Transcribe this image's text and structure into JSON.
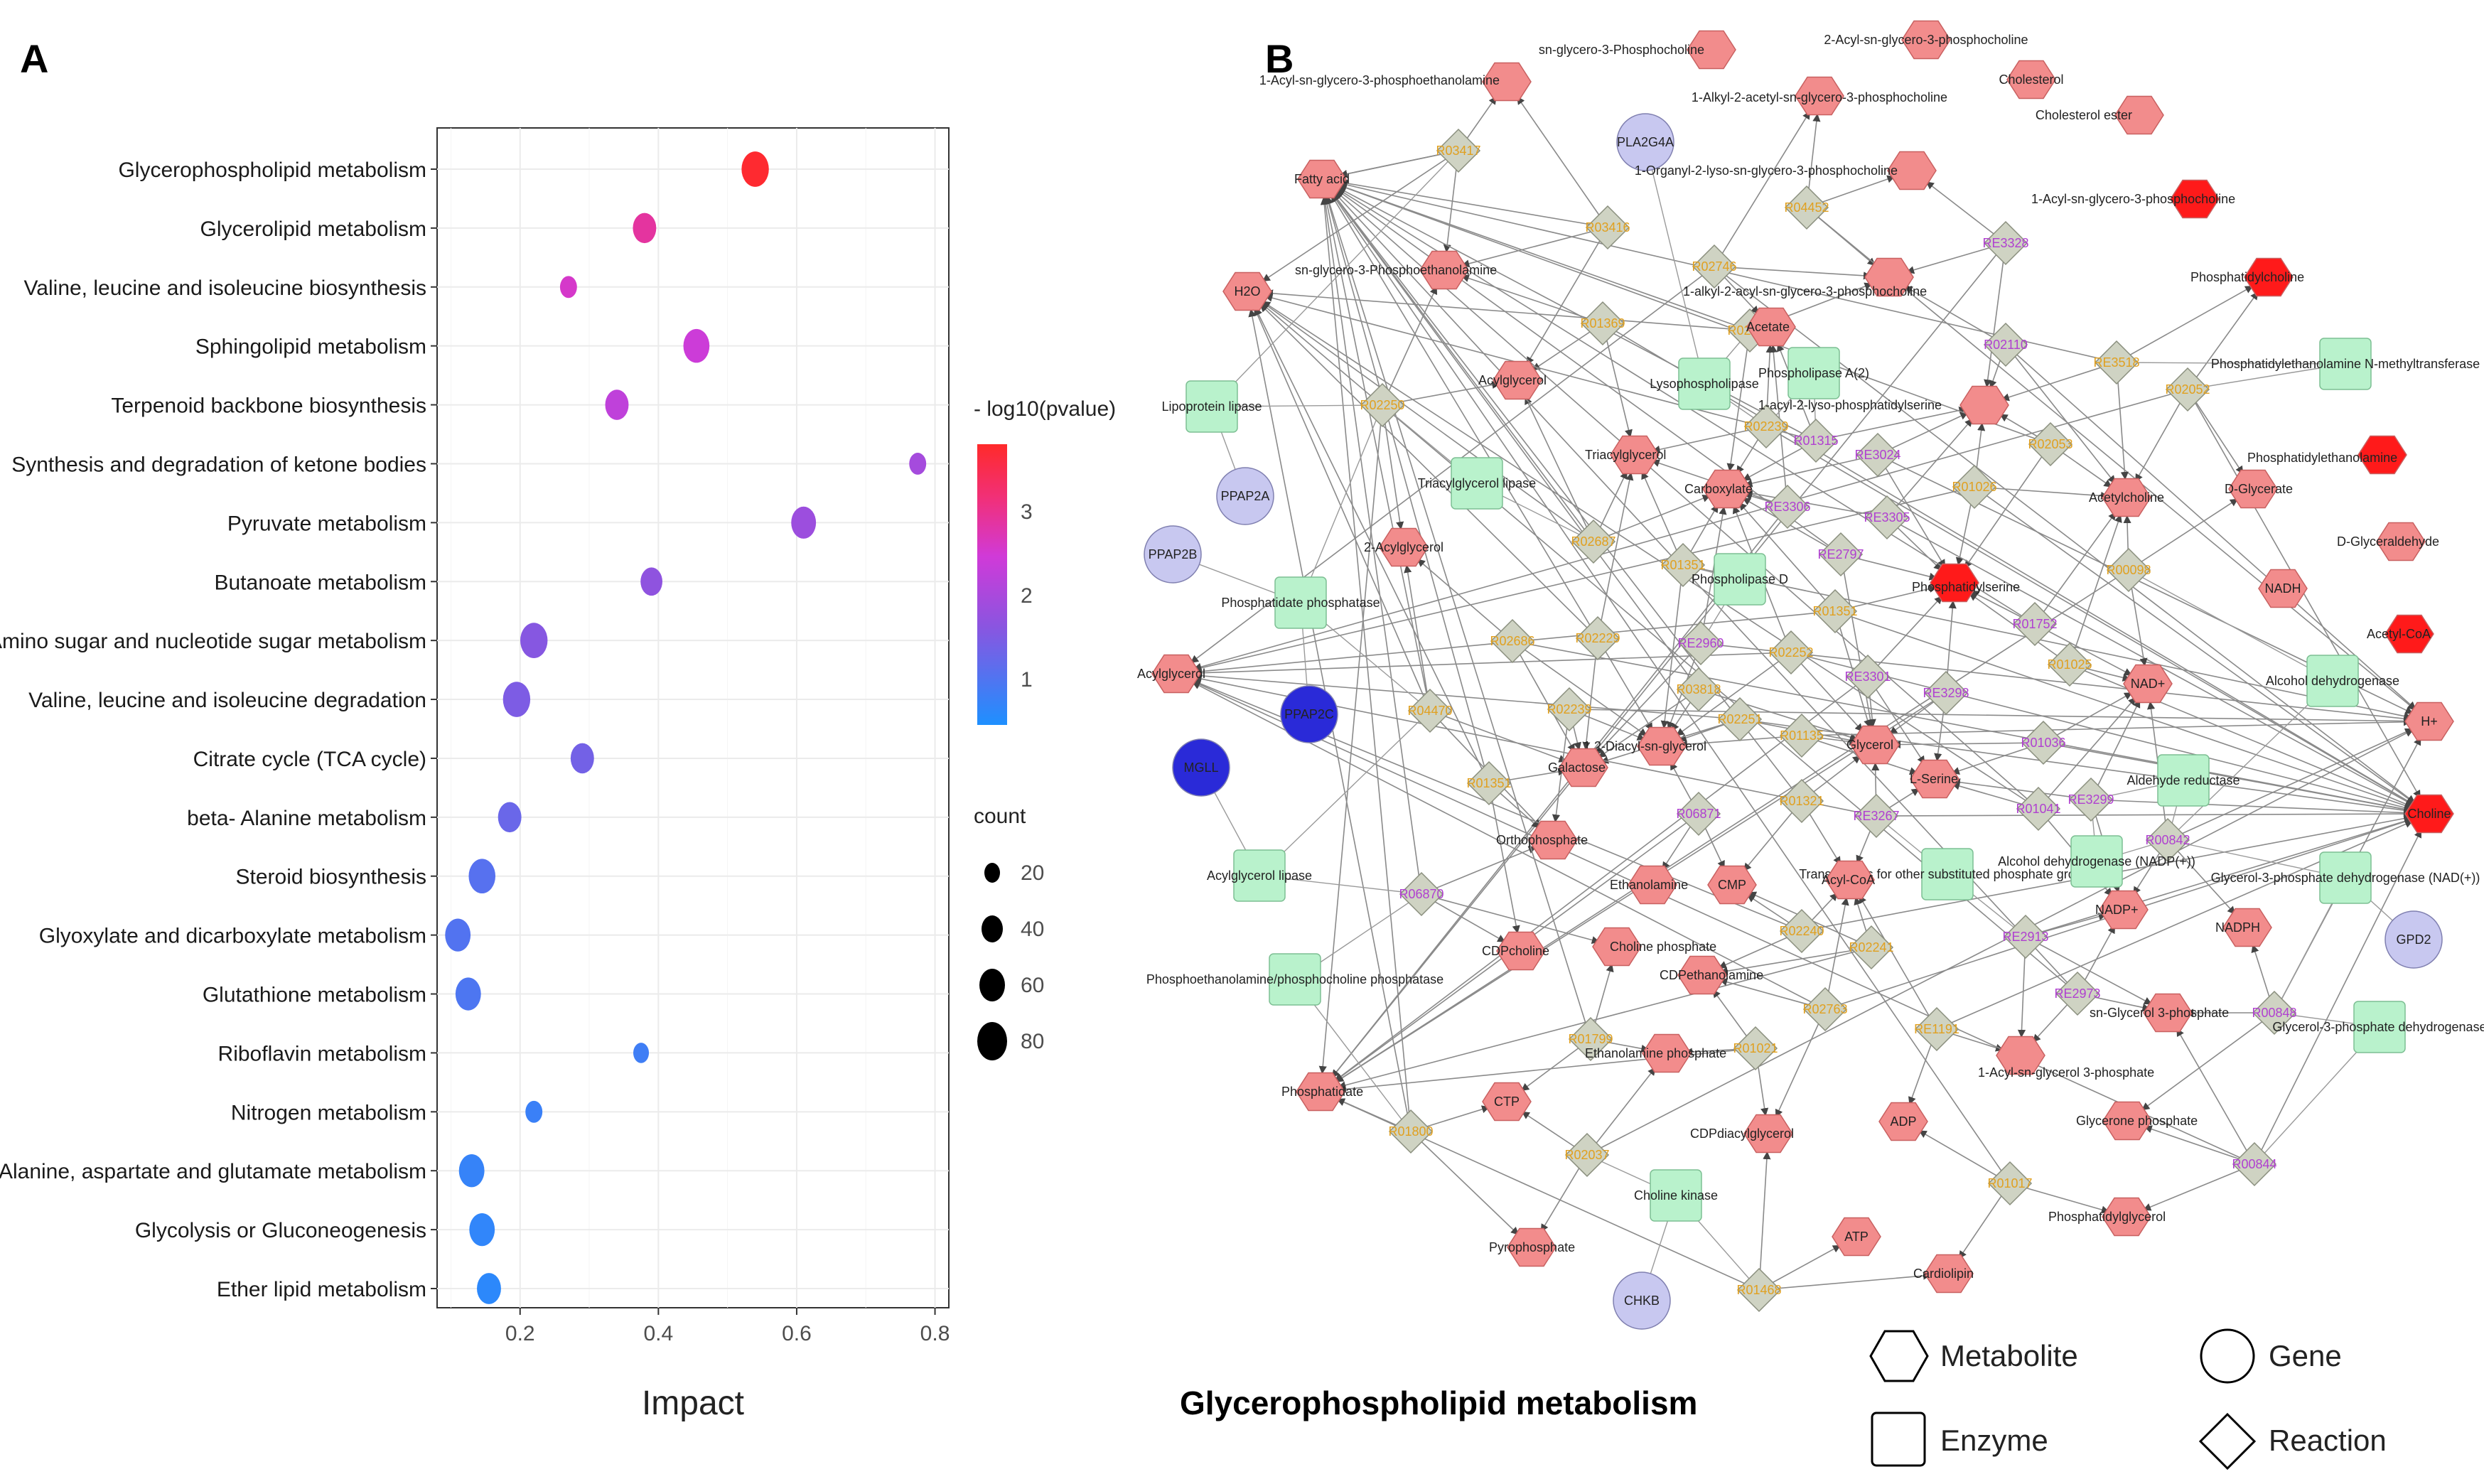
{
  "panel_a": {
    "letter": "A",
    "xlabel": "Impact",
    "x_ticks": [
      "0.2",
      "0.4",
      "0.6",
      "0.8"
    ],
    "legend_color_title": "- log10(pvalue)",
    "legend_color_ticks": [
      "1",
      "2",
      "3"
    ],
    "legend_size_title": "count",
    "legend_size_ticks": [
      "20",
      "40",
      "60",
      "80"
    ]
  },
  "chart_data": {
    "type": "scatter",
    "xlabel": "Impact",
    "xlim": [
      0.08,
      0.82
    ],
    "color_label": "-log10(pvalue)",
    "color_range": [
      0.55,
      3.8
    ],
    "colors": {
      "low": "#1e90ff",
      "mid": "#d03ad8",
      "high": "#ff2a2a"
    },
    "size_label": "count",
    "points": [
      {
        "pathway": "Glycerophospholipid metabolism",
        "impact": 0.54,
        "neglog10p": 3.75,
        "count": 85
      },
      {
        "pathway": "Glycerolipid metabolism",
        "impact": 0.38,
        "neglog10p": 2.9,
        "count": 55
      },
      {
        "pathway": "Valine, leucine and isoleucine biosynthesis",
        "impact": 0.27,
        "neglog10p": 2.6,
        "count": 20
      },
      {
        "pathway": "Sphingolipid metabolism",
        "impact": 0.455,
        "neglog10p": 2.45,
        "count": 75
      },
      {
        "pathway": "Terpenoid backbone biosynthesis",
        "impact": 0.34,
        "neglog10p": 2.3,
        "count": 55
      },
      {
        "pathway": "Synthesis and degradation of ketone bodies",
        "impact": 0.775,
        "neglog10p": 2.0,
        "count": 20
      },
      {
        "pathway": "Pyruvate metabolism",
        "impact": 0.61,
        "neglog10p": 1.9,
        "count": 65
      },
      {
        "pathway": "Butanoate metabolism",
        "impact": 0.39,
        "neglog10p": 1.75,
        "count": 45
      },
      {
        "pathway": "Amino sugar and nucleotide sugar metabolism",
        "impact": 0.22,
        "neglog10p": 1.65,
        "count": 85
      },
      {
        "pathway": "Valine, leucine and isoleucine degradation",
        "impact": 0.195,
        "neglog10p": 1.55,
        "count": 85
      },
      {
        "pathway": "Citrate cycle (TCA cycle)",
        "impact": 0.29,
        "neglog10p": 1.45,
        "count": 55
      },
      {
        "pathway": "beta- Alanine metabolism",
        "impact": 0.185,
        "neglog10p": 1.35,
        "count": 55
      },
      {
        "pathway": "Steroid biosynthesis",
        "impact": 0.145,
        "neglog10p": 1.15,
        "count": 80
      },
      {
        "pathway": "Glyoxylate and dicarboxylate metabolism",
        "impact": 0.11,
        "neglog10p": 1.1,
        "count": 70
      },
      {
        "pathway": "Glutathione metabolism",
        "impact": 0.125,
        "neglog10p": 1.05,
        "count": 70
      },
      {
        "pathway": "Riboflavin metabolism",
        "impact": 0.375,
        "neglog10p": 0.9,
        "count": 15
      },
      {
        "pathway": "Nitrogen metabolism",
        "impact": 0.22,
        "neglog10p": 0.85,
        "count": 20
      },
      {
        "pathway": "Alanine, aspartate and glutamate metabolism",
        "impact": 0.13,
        "neglog10p": 0.8,
        "count": 70
      },
      {
        "pathway": "Glycolysis or Gluconeogenesis",
        "impact": 0.145,
        "neglog10p": 0.75,
        "count": 70
      },
      {
        "pathway": "Ether lipid metabolism",
        "impact": 0.155,
        "neglog10p": 0.7,
        "count": 60
      }
    ]
  },
  "panel_b": {
    "letter": "B",
    "title": "Glycerophospholipid metabolism",
    "legend": {
      "metabolite": "Metabolite",
      "gene": "Gene",
      "enzyme": "Enzyme",
      "reaction": "Reaction"
    },
    "metabolites": [
      {
        "id": "m1",
        "label": "sn-glycero-3-Phosphocholine",
        "color": "#f28c8c"
      },
      {
        "id": "m2",
        "label": "2-Acyl-sn-glycero-3-phosphocholine",
        "color": "#f28c8c"
      },
      {
        "id": "m3",
        "label": "1-Acyl-sn-glycero-3-phosphoethanolamine",
        "color": "#f28c8c"
      },
      {
        "id": "m4",
        "label": "1-Alkyl-2-acetyl-sn-glycero-3-phosphocholine",
        "color": "#f28c8c"
      },
      {
        "id": "m5",
        "label": "Cholesterol",
        "color": "#f28c8c"
      },
      {
        "id": "m6",
        "label": "Cholesterol ester",
        "color": "#f28c8c"
      },
      {
        "id": "m7",
        "label": "Fatty acid",
        "color": "#f28c8c"
      },
      {
        "id": "m8",
        "label": "1-Organyl-2-lyso-sn-glycero-3-phosphocholine",
        "color": "#f28c8c"
      },
      {
        "id": "m9",
        "label": "1-Acyl-sn-glycero-3-phosphocholine",
        "color": "#ff1a1a"
      },
      {
        "id": "m10",
        "label": "H2O",
        "color": "#f28c8c"
      },
      {
        "id": "m11",
        "label": "sn-glycero-3-Phosphoethanolamine",
        "color": "#f28c8c"
      },
      {
        "id": "m12",
        "label": "Phosphatidylcholine",
        "color": "#ff1a1a"
      },
      {
        "id": "m13",
        "label": "1-alkyl-2-acyl-sn-glycero-3-phosphocholine",
        "color": "#f28c8c"
      },
      {
        "id": "m14",
        "label": "Acetate",
        "color": "#f28c8c"
      },
      {
        "id": "m15",
        "label": "Acylglycerol",
        "color": "#f28c8c"
      },
      {
        "id": "m16",
        "label": "1-acyl-2-lyso-phosphatidylserine",
        "color": "#f28c8c"
      },
      {
        "id": "m17",
        "label": "Triacylglycerol",
        "color": "#f28c8c"
      },
      {
        "id": "m18",
        "label": "Carboxylate",
        "color": "#f28c8c"
      },
      {
        "id": "m19",
        "label": "Phosphatidylethanolamine",
        "color": "#ff1a1a"
      },
      {
        "id": "m20",
        "label": "Acetylcholine",
        "color": "#f28c8c"
      },
      {
        "id": "m21",
        "label": "D-Glycerate",
        "color": "#f28c8c"
      },
      {
        "id": "m22",
        "label": "2-Acylglycerol",
        "color": "#f28c8c"
      },
      {
        "id": "m23",
        "label": "D-Glyceraldehyde",
        "color": "#f28c8c"
      },
      {
        "id": "m24",
        "label": "Phosphatidylserine",
        "color": "#ff1a1a"
      },
      {
        "id": "m25",
        "label": "NADH",
        "color": "#f28c8c"
      },
      {
        "id": "m26",
        "label": "Acetyl-CoA",
        "color": "#ff1a1a"
      },
      {
        "id": "m27",
        "label": "Acylglycerol",
        "color": "#f28c8c"
      },
      {
        "id": "m28",
        "label": "NAD+",
        "color": "#f28c8c"
      },
      {
        "id": "m29",
        "label": "H+",
        "color": "#f28c8c"
      },
      {
        "id": "m30",
        "label": "1,2-Diacyl-sn-glycerol",
        "color": "#f28c8c"
      },
      {
        "id": "m31",
        "label": "Glycerol",
        "color": "#f28c8c"
      },
      {
        "id": "m32",
        "label": "Galactose",
        "color": "#f28c8c"
      },
      {
        "id": "m33",
        "label": "L-Serine",
        "color": "#f28c8c"
      },
      {
        "id": "m34",
        "label": "Choline",
        "color": "#ff1a1a"
      },
      {
        "id": "m35",
        "label": "Orthophosphate",
        "color": "#f28c8c"
      },
      {
        "id": "m36",
        "label": "Ethanolamine",
        "color": "#f28c8c"
      },
      {
        "id": "m37",
        "label": "CMP",
        "color": "#f28c8c"
      },
      {
        "id": "m38",
        "label": "Acyl-CoA",
        "color": "#f28c8c"
      },
      {
        "id": "m39",
        "label": "NADP+",
        "color": "#f28c8c"
      },
      {
        "id": "m40",
        "label": "NADPH",
        "color": "#f28c8c"
      },
      {
        "id": "m41",
        "label": "CDPcholine",
        "color": "#f28c8c"
      },
      {
        "id": "m42",
        "label": "Choline phosphate",
        "color": "#f28c8c"
      },
      {
        "id": "m43",
        "label": "CDPethanolamine",
        "color": "#f28c8c"
      },
      {
        "id": "m44",
        "label": "sn-Glycerol 3-phosphate",
        "color": "#f28c8c"
      },
      {
        "id": "m45",
        "label": "Ethanolamine phosphate",
        "color": "#f28c8c"
      },
      {
        "id": "m46",
        "label": "Phosphatidate",
        "color": "#f28c8c"
      },
      {
        "id": "m47",
        "label": "CTP",
        "color": "#f28c8c"
      },
      {
        "id": "m48",
        "label": "1-Acyl-sn-glycerol 3-phosphate",
        "color": "#f28c8c"
      },
      {
        "id": "m49",
        "label": "ADP",
        "color": "#f28c8c"
      },
      {
        "id": "m50",
        "label": "CDPdiacylglycerol",
        "color": "#f28c8c"
      },
      {
        "id": "m51",
        "label": "Glycerone phosphate",
        "color": "#f28c8c"
      },
      {
        "id": "m52",
        "label": "ATP",
        "color": "#f28c8c"
      },
      {
        "id": "m53",
        "label": "Phosphatidylglycerol",
        "color": "#f28c8c"
      },
      {
        "id": "m54",
        "label": "Pyrophosphate",
        "color": "#f28c8c"
      },
      {
        "id": "m55",
        "label": "Cardiolipin",
        "color": "#f28c8c"
      }
    ],
    "genes": [
      {
        "id": "g1",
        "label": "PLA2G4A",
        "color": "#c8c8f0"
      },
      {
        "id": "g2",
        "label": "PPAP2A",
        "color": "#c8c8f0"
      },
      {
        "id": "g3",
        "label": "PPAP2B",
        "color": "#c8c8f0"
      },
      {
        "id": "g4",
        "label": "PPAP2C",
        "color": "#2a2ad8"
      },
      {
        "id": "g5",
        "label": "MGLL",
        "color": "#2a2ad8"
      },
      {
        "id": "g6",
        "label": "GPD2",
        "color": "#c8c8f0"
      },
      {
        "id": "g7",
        "label": "CHKB",
        "color": "#c8c8f0"
      }
    ],
    "enzymes": [
      {
        "id": "e1",
        "label": "Lipoprotein lipase"
      },
      {
        "id": "e2",
        "label": "Lysophospholipase"
      },
      {
        "id": "e3",
        "label": "Phospholipase A(2)"
      },
      {
        "id": "e4",
        "label": "Phosphatidylethanolamine N-methyltransferase"
      },
      {
        "id": "e5",
        "label": "Triacylglycerol lipase"
      },
      {
        "id": "e6",
        "label": "Phosphatidate phosphatase"
      },
      {
        "id": "e7",
        "label": "Phospholipase D"
      },
      {
        "id": "e8",
        "label": "Alcohol dehydrogenase"
      },
      {
        "id": "e9",
        "label": "Aldehyde reductase"
      },
      {
        "id": "e10",
        "label": "Transferases for other substituted phosphate groups"
      },
      {
        "id": "e11",
        "label": "Alcohol dehydrogenase (NADP(+))"
      },
      {
        "id": "e12",
        "label": "Acylglycerol lipase"
      },
      {
        "id": "e13",
        "label": "Glycerol-3-phosphate dehydrogenase (NAD(+))"
      },
      {
        "id": "e14",
        "label": "Phosphoethanolamine/phosphocholine phosphatase"
      },
      {
        "id": "e15",
        "label": "Glycerol-3-phosphate dehydrogenase"
      },
      {
        "id": "e16",
        "label": "Choline kinase"
      }
    ],
    "reactions": [
      {
        "id": "r1",
        "label": "R03417",
        "color": "#e0a020"
      },
      {
        "id": "r2",
        "label": "R04452",
        "color": "#e0a020"
      },
      {
        "id": "r3",
        "label": "R03416",
        "color": "#e0a020"
      },
      {
        "id": "r4",
        "label": "R02746",
        "color": "#e0a020"
      },
      {
        "id": "r5",
        "label": "RE3328",
        "color": "#b040d0"
      },
      {
        "id": "r6",
        "label": "R01369",
        "color": "#e0a020"
      },
      {
        "id": "r7",
        "label": "R02747",
        "color": "#e0a020"
      },
      {
        "id": "r8",
        "label": "R02110",
        "color": "#b040d0"
      },
      {
        "id": "r9",
        "label": "RE3518",
        "color": "#e0a020"
      },
      {
        "id": "r10",
        "label": "R02052",
        "color": "#e0a020"
      },
      {
        "id": "r11",
        "label": "R02250",
        "color": "#e0a020"
      },
      {
        "id": "r12",
        "label": "R02239",
        "color": "#e0a020"
      },
      {
        "id": "r13",
        "label": "R01315",
        "color": "#b040d0"
      },
      {
        "id": "r14",
        "label": "RE3024",
        "color": "#b040d0"
      },
      {
        "id": "r15",
        "label": "R02053",
        "color": "#e0a020"
      },
      {
        "id": "r16",
        "label": "R01026",
        "color": "#e0a020"
      },
      {
        "id": "r17",
        "label": "RE3306",
        "color": "#b040d0"
      },
      {
        "id": "r18",
        "label": "RE3305",
        "color": "#b040d0"
      },
      {
        "id": "r19",
        "label": "R02687",
        "color": "#e0a020"
      },
      {
        "id": "r20",
        "label": "R01351",
        "color": "#e0a020"
      },
      {
        "id": "r21",
        "label": "RE2797",
        "color": "#b040d0"
      },
      {
        "id": "r22",
        "label": "R01351",
        "color": "#e0a020"
      },
      {
        "id": "r23",
        "label": "R00098",
        "color": "#e0a020"
      },
      {
        "id": "r24",
        "label": "R02686",
        "color": "#e0a020"
      },
      {
        "id": "r25",
        "label": "R02229",
        "color": "#e0a020"
      },
      {
        "id": "r26",
        "label": "RE2960",
        "color": "#b040d0"
      },
      {
        "id": "r27",
        "label": "R01752",
        "color": "#b040d0"
      },
      {
        "id": "r28",
        "label": "R02252",
        "color": "#e0a020"
      },
      {
        "id": "r29",
        "label": "RE3301",
        "color": "#b040d0"
      },
      {
        "id": "r30",
        "label": "R01025",
        "color": "#e0a020"
      },
      {
        "id": "r31",
        "label": "R04470",
        "color": "#e0a020"
      },
      {
        "id": "r32",
        "label": "R02239",
        "color": "#e0a020"
      },
      {
        "id": "r33",
        "label": "R03818",
        "color": "#e0a020"
      },
      {
        "id": "r34",
        "label": "R02251",
        "color": "#e0a020"
      },
      {
        "id": "r35",
        "label": "RE3298",
        "color": "#b040d0"
      },
      {
        "id": "r36",
        "label": "R01036",
        "color": "#b040d0"
      },
      {
        "id": "r37",
        "label": "R01351",
        "color": "#e0a020"
      },
      {
        "id": "r38",
        "label": "R01135",
        "color": "#e0a020"
      },
      {
        "id": "r39",
        "label": "R01321",
        "color": "#e0a020"
      },
      {
        "id": "r40",
        "label": "RE3267",
        "color": "#b040d0"
      },
      {
        "id": "r41",
        "label": "R06871",
        "color": "#b040d0"
      },
      {
        "id": "r42",
        "label": "RE3299",
        "color": "#b040d0"
      },
      {
        "id": "r43",
        "label": "R01041",
        "color": "#b040d0"
      },
      {
        "id": "r44",
        "label": "R00842",
        "color": "#b040d0"
      },
      {
        "id": "r45",
        "label": "R06870",
        "color": "#b040d0"
      },
      {
        "id": "r46",
        "label": "R02240",
        "color": "#e0a020"
      },
      {
        "id": "r47",
        "label": "R02241",
        "color": "#e0a020"
      },
      {
        "id": "r48",
        "label": "RE2913",
        "color": "#b040d0"
      },
      {
        "id": "r49",
        "label": "RE2973",
        "color": "#b040d0"
      },
      {
        "id": "r50",
        "label": "R00848",
        "color": "#b040d0"
      },
      {
        "id": "r51",
        "label": "R01799",
        "color": "#e0a020"
      },
      {
        "id": "r52",
        "label": "R02763",
        "color": "#e0a020"
      },
      {
        "id": "r53",
        "label": "R01021",
        "color": "#e0a020"
      },
      {
        "id": "r54",
        "label": "RE1191",
        "color": "#e0a020"
      },
      {
        "id": "r55",
        "label": "R01800",
        "color": "#e0a020"
      },
      {
        "id": "r56",
        "label": "R02037",
        "color": "#e0a020"
      },
      {
        "id": "r57",
        "label": "R01017",
        "color": "#e0a020"
      },
      {
        "id": "r58",
        "label": "R00844",
        "color": "#b040d0"
      },
      {
        "id": "r59",
        "label": "R01468",
        "color": "#e0a020"
      }
    ]
  }
}
